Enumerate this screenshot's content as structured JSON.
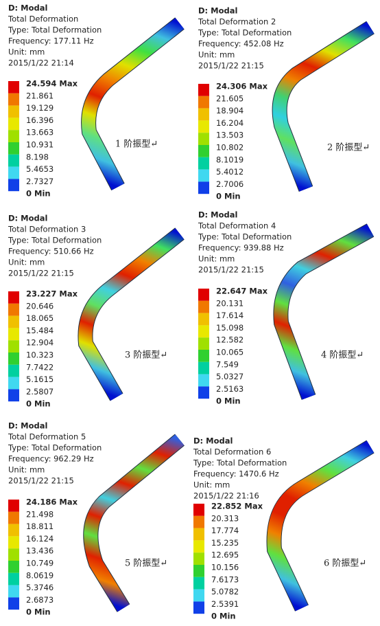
{
  "panels": [
    {
      "header": [
        "D: Modal",
        "Total Deformation",
        "Type: Total Deformation",
        "Frequency: 177.11 Hz",
        "Unit: mm",
        "2015/1/22 21:14"
      ],
      "legend": [
        "24.594 Max",
        "21.861",
        "19.129",
        "16.396",
        "13.663",
        "10.931",
        "8.198",
        "5.4653",
        "2.7327",
        "0 Min"
      ],
      "caption": "1 阶振型↵"
    },
    {
      "header": [
        "D: Modal",
        "Total Deformation 2",
        "Type: Total Deformation",
        "Frequency: 452.08 Hz",
        "Unit: mm",
        "2015/1/22 21:15"
      ],
      "legend": [
        "24.306 Max",
        "21.605",
        "18.904",
        "16.204",
        "13.503",
        "10.802",
        "8.1019",
        "5.4012",
        "2.7006",
        "0 Min"
      ],
      "caption": "2 阶振型↵"
    },
    {
      "header": [
        "D: Modal",
        "Total Deformation 3",
        "Type: Total Deformation",
        "Frequency: 510.66 Hz",
        "Unit: mm",
        "2015/1/22 21:15"
      ],
      "legend": [
        "23.227 Max",
        "20.646",
        "18.065",
        "15.484",
        "12.904",
        "10.323",
        "7.7422",
        "5.1615",
        "2.5807",
        "0 Min"
      ],
      "caption": "3 阶振型↵"
    },
    {
      "header": [
        "D: Modal",
        "Total Deformation 4",
        "Type: Total Deformation",
        "Frequency: 939.88 Hz",
        "Unit: mm",
        "2015/1/22 21:15"
      ],
      "legend": [
        "22.647 Max",
        "20.131",
        "17.614",
        "15.098",
        "12.582",
        "10.065",
        "7.549",
        "5.0327",
        "2.5163",
        "0 Min"
      ],
      "caption": "4 阶振型↵"
    },
    {
      "header": [
        "D: Modal",
        "Total Deformation 5",
        "Type: Total Deformation",
        "Frequency: 962.29 Hz",
        "Unit: mm",
        "2015/1/22 21:15"
      ],
      "legend": [
        "24.186 Max",
        "21.498",
        "18.811",
        "16.124",
        "13.436",
        "10.749",
        "8.0619",
        "5.3746",
        "2.6873",
        "0 Min"
      ],
      "caption": "5 阶振型↵"
    },
    {
      "header": [
        "D: Modal",
        "Total Deformation 6",
        "Type: Total Deformation",
        "Frequency: 1470.6 Hz",
        "Unit: mm",
        "2015/1/22 21:16"
      ],
      "legend": [
        "22.852 Max",
        "20.313",
        "17.774",
        "15.235",
        "12.695",
        "10.156",
        "7.6173",
        "5.0782",
        "2.5391",
        "0 Min"
      ],
      "caption": "6 阶振型↵"
    }
  ]
}
